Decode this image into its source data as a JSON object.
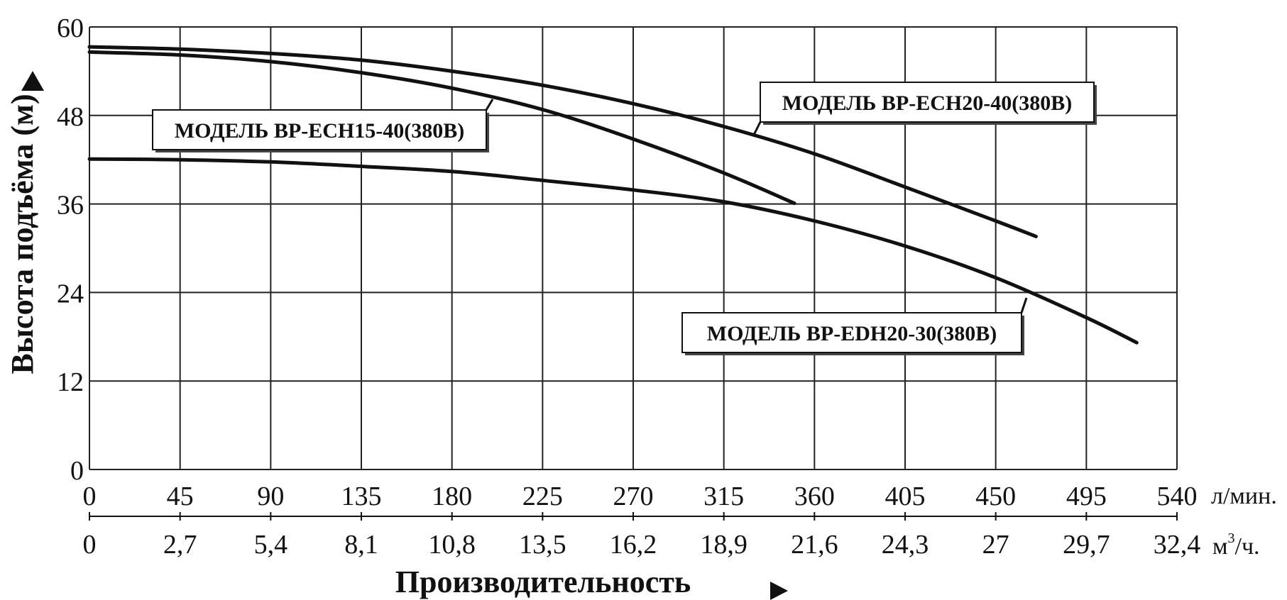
{
  "chart_data": {
    "type": "line",
    "ylabel": "Высота подъёма  (м)",
    "xlabel": "Производительность",
    "ylim": [
      0,
      60
    ],
    "yticks": [
      "0",
      "12",
      "24",
      "36",
      "48",
      "60"
    ],
    "xlim": [
      0,
      540
    ],
    "xticks_lmin": [
      "0",
      "45",
      "90",
      "135",
      "180",
      "225",
      "270",
      "315",
      "360",
      "405",
      "450",
      "495",
      "540"
    ],
    "xticks_m3h": [
      "0",
      "2,7",
      "5,4",
      "8,1",
      "10,8",
      "13,5",
      "16,2",
      "18,9",
      "21,6",
      "24,3",
      "27",
      "29,7",
      "32,4"
    ],
    "unit_lmin": "л/мин.",
    "unit_m3h_base": "м",
    "unit_m3h_sup": "3",
    "unit_m3h_rest": "/ч.",
    "grid": true,
    "series": [
      {
        "name": "МОДЕЛЬ BP-ECH20-40(380B)",
        "x": [
          0,
          45,
          90,
          135,
          180,
          225,
          270,
          315,
          360,
          405,
          450,
          470
        ],
        "y": [
          57.3,
          57.0,
          56.4,
          55.5,
          54.0,
          52.1,
          49.6,
          46.5,
          42.8,
          38.3,
          33.7,
          31.6
        ]
      },
      {
        "name": "МОДЕЛЬ BP-ECH15-40(380B)",
        "x": [
          0,
          45,
          90,
          135,
          180,
          225,
          270,
          315,
          350
        ],
        "y": [
          56.6,
          56.2,
          55.3,
          53.8,
          51.7,
          48.8,
          44.8,
          40.2,
          36.1
        ]
      },
      {
        "name": "МОДЕЛЬ BP-EDH20-30(380B)",
        "x": [
          0,
          45,
          90,
          135,
          180,
          225,
          270,
          315,
          360,
          405,
          450,
          495,
          520
        ],
        "y": [
          42.1,
          42.0,
          41.7,
          41.1,
          40.4,
          39.2,
          37.9,
          36.3,
          33.7,
          30.3,
          26.0,
          20.6,
          17.2
        ]
      }
    ],
    "annotations": [
      {
        "text": "МОДЕЛЬ BP-ECH20-40(380B)",
        "series": 0
      },
      {
        "text": "МОДЕЛЬ BP-ECH15-40(380B)",
        "series": 1
      },
      {
        "text": "МОДЕЛЬ BP-EDH20-30(380B)",
        "series": 2
      }
    ],
    "colors": {
      "line": "#111111",
      "grid": "#222222",
      "background": "#ffffff"
    }
  }
}
